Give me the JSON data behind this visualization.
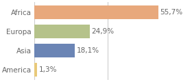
{
  "categories": [
    "America",
    "Asia",
    "Europa",
    "Africa"
  ],
  "values": [
    1.3,
    18.1,
    24.9,
    55.7
  ],
  "labels": [
    "1,3%",
    "18,1%",
    "24,9%",
    "55,7%"
  ],
  "bar_colors": [
    "#e8c97a",
    "#6b85b5",
    "#b5c28a",
    "#e8a87c"
  ],
  "background_color": "#ffffff",
  "xlim": [
    0,
    70
  ],
  "label_fontsize": 7.5,
  "tick_fontsize": 7.5,
  "bar_height": 0.72,
  "grid_color": "#cccccc",
  "text_color": "#666666"
}
